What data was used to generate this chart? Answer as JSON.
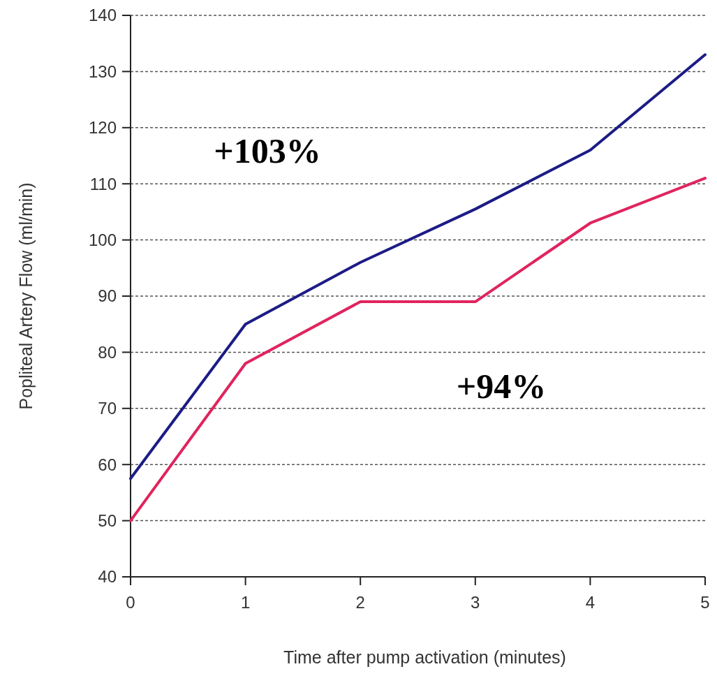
{
  "chart_data": {
    "type": "line",
    "xlabel": "Time after pump activation (minutes)",
    "ylabel": "Popliteal Artery Flow (ml/min)",
    "x": [
      0,
      1,
      2,
      3,
      4,
      5
    ],
    "series": [
      {
        "color": "#1c1c86",
        "values": [
          57.5,
          85,
          96,
          105.5,
          116,
          133
        ]
      },
      {
        "color": "#e0245e",
        "values": [
          50,
          78,
          89,
          89,
          103,
          111
        ]
      }
    ],
    "xlim": [
      0,
      5
    ],
    "xticks": [
      0,
      1,
      2,
      3,
      4,
      5
    ],
    "ylim": [
      40,
      140
    ],
    "yticks": [
      40,
      50,
      60,
      70,
      80,
      90,
      100,
      110,
      120,
      130,
      140
    ],
    "grid": "y",
    "marker": "none",
    "line_style": "solid",
    "annotations": [
      "+103%",
      "+94%"
    ]
  }
}
